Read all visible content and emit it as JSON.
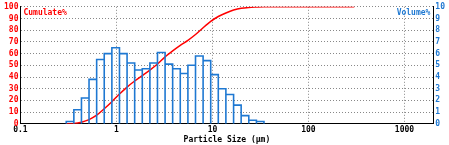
{
  "chart_data": {
    "type": "histogram",
    "xlabel": "Particle Size (μm)",
    "log": "x",
    "grid": true,
    "xlim": [
      0.1,
      2000
    ],
    "xticks": [
      0.1,
      1,
      10,
      100,
      1000
    ],
    "ylim": [
      0,
      100
    ],
    "yticks": [
      0,
      10,
      20,
      30,
      40,
      50,
      60,
      70,
      80,
      90,
      100
    ],
    "y2lim": [
      0,
      10
    ],
    "y2ticks": [
      0,
      1,
      2,
      3,
      4,
      5,
      6,
      7,
      8,
      9,
      10
    ],
    "bins": [
      0.3,
      0.36,
      0.432,
      0.518,
      0.622,
      0.746,
      0.896,
      1.075,
      1.29,
      1.548,
      1.858,
      2.23,
      2.675,
      3.21,
      3.85,
      4.62,
      5.55,
      6.66,
      7.99,
      9.59,
      11.5,
      13.8,
      16.6,
      19.9,
      23.9,
      28.7,
      34.4
    ],
    "series": [
      {
        "name": "Volume%",
        "type": "bar",
        "axis": "y2",
        "color": "#1e78d2",
        "values": [
          0.2,
          1.2,
          2.2,
          3.8,
          5.5,
          6.0,
          6.5,
          6.0,
          5.2,
          4.6,
          4.7,
          5.2,
          6.1,
          5.1,
          4.7,
          4.3,
          5.0,
          5.8,
          5.4,
          4.2,
          3.0,
          2.5,
          1.6,
          0.7,
          0.3,
          0.2
        ]
      },
      {
        "name": "Cumulate%",
        "type": "line",
        "color": "#ff0000",
        "x": [
          0.3,
          0.36,
          0.432,
          0.518,
          0.622,
          0.746,
          0.896,
          1.075,
          1.29,
          1.548,
          1.858,
          2.23,
          2.675,
          3.21,
          3.85,
          4.62,
          5.55,
          6.66,
          7.99,
          9.59,
          11.5,
          13.8,
          16.6,
          19.9,
          23.9,
          28.7,
          34.4,
          300
        ],
        "values": [
          0,
          0.2,
          1.4,
          3.6,
          7.4,
          12.9,
          18.9,
          25.4,
          31.4,
          36.6,
          41.2,
          45.9,
          51.1,
          57.2,
          62.3,
          67.0,
          71.3,
          76.3,
          82.1,
          87.5,
          91.7,
          94.7,
          97.2,
          98.8,
          99.5,
          99.8,
          100.0,
          100.0
        ]
      }
    ]
  }
}
